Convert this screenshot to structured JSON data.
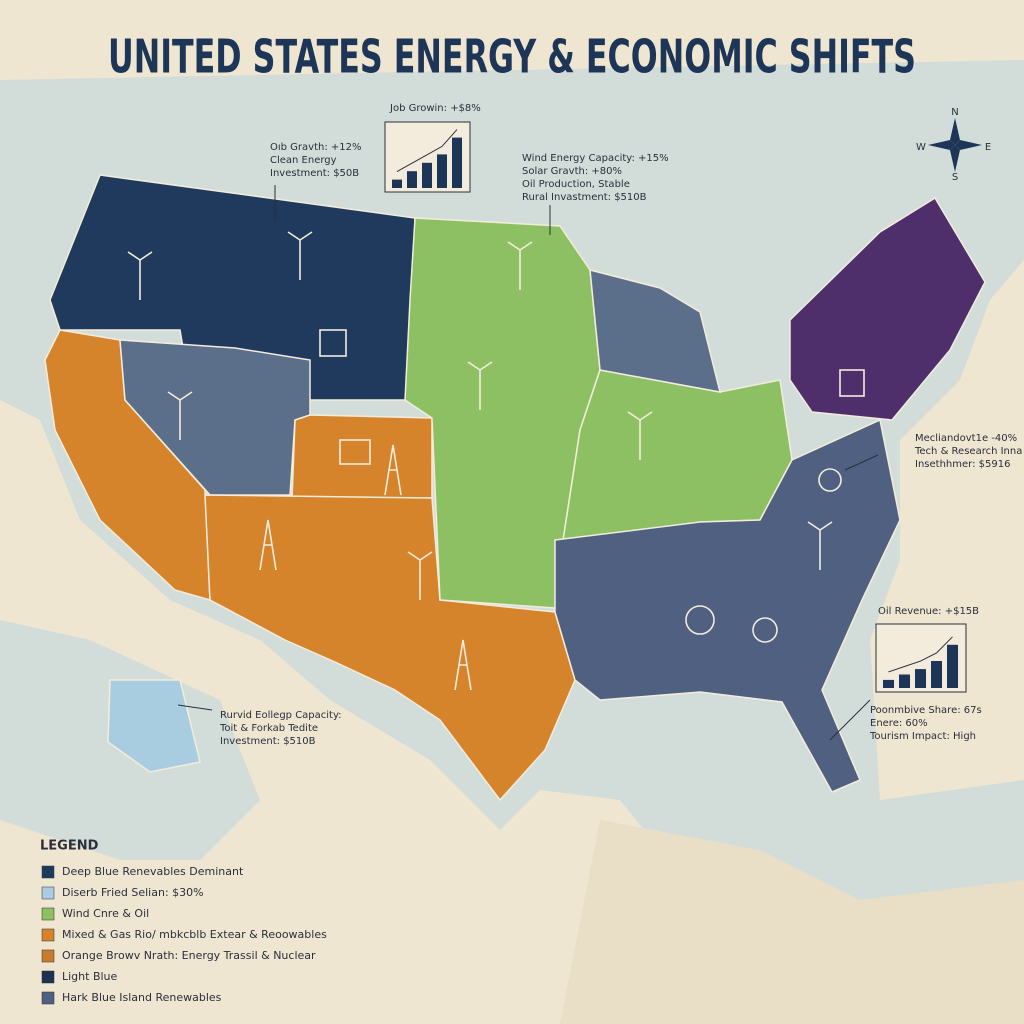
{
  "title": "UNITED STATES ENERGY & ECONOMIC SHIFTS",
  "compass": {
    "n": "N",
    "e": "E",
    "s": "S",
    "w": "W"
  },
  "annotations": [
    {
      "lines": [
        "Oıb Gravth: +12%",
        "Clean Energy",
        "Investment: $50B"
      ]
    },
    {
      "lines": [
        "Wind Energy Capacity: +15%",
        "Solar Gravth: +80%",
        "Oil Production, Stable",
        "Rural Invastment: $510B"
      ]
    },
    {
      "lines": [
        "Mecliandovt1e -40%",
        "Tech & Research Inna",
        "Insethhmer: $5916"
      ]
    },
    {
      "lines": [
        "Poonmbive Share: 67s",
        "Enere: 60%",
        "Tourism Impact: High"
      ]
    },
    {
      "lines": [
        "Rurvid Eollegp Capacity:",
        "Toit & Forkab Tedite",
        "Investment: $510B"
      ]
    }
  ],
  "mini_charts": [
    {
      "label": "Job Growin: +$8%",
      "bars": [
        1.5,
        3,
        4.5,
        6,
        9
      ]
    },
    {
      "label": "Oil Revenue: +$15B",
      "bars": [
        1.5,
        2.5,
        3.5,
        5,
        8
      ]
    }
  ],
  "legend": {
    "title": "LEGEND",
    "items": [
      {
        "color": "#1f3a5c",
        "label": "Deep Blue Renevables Deminant"
      },
      {
        "color": "#a9cde0",
        "label": "Diserb Fried Selian: $30%"
      },
      {
        "color": "#8dc063",
        "label": "Wind Cnre & Oil"
      },
      {
        "color": "#d5842b",
        "label": "Mixed & Gas Rio/ mbkcblb Extear & Reoowables"
      },
      {
        "color": "#c97a2a",
        "label": "Orange Browv Nrath: Energy Trassil & Nuclear"
      },
      {
        "color": "#1f3250",
        "label": "Light Blue"
      },
      {
        "color": "#4f6080",
        "label": "Hark Blue Island Renewables"
      }
    ]
  }
}
